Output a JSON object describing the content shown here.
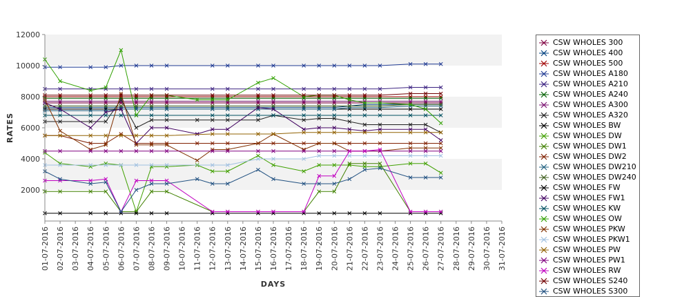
{
  "chart_data": {
    "type": "line",
    "title": "",
    "xlabel": "DAYS",
    "ylabel": "RATES",
    "ylim": [
      0,
      12000
    ],
    "yticks": [
      2000,
      4000,
      6000,
      8000,
      10000,
      12000
    ],
    "grid": "alternating horizontal bands",
    "legend_position": "right",
    "marker": "x",
    "categories": [
      "01-07-2016",
      "02-07-2016",
      "03-07-2016",
      "04-07-2016",
      "05-07-2016",
      "06-07-2016",
      "07-07-2016",
      "08-07-2016",
      "09-07-2016",
      "10-07-2016",
      "11-07-2016",
      "12-07-2016",
      "13-07-2016",
      "14-07-2016",
      "15-07-2016",
      "16-07-2016",
      "17-07-2016",
      "18-07-2016",
      "19-07-2016",
      "20-07-2016",
      "21-07-2016",
      "22-07-2016",
      "23-07-2016",
      "24-07-2016",
      "25-07-2016",
      "26-07-2016",
      "27-07-2016",
      "28-07-2016",
      "29-07-2016",
      "30-07-2016",
      "31-07-2016"
    ],
    "series": [
      {
        "name": "CSW WHOLES 300",
        "color": "#800040",
        "values": [
          7600,
          7600,
          null,
          7600,
          7600,
          7600,
          7600,
          7600,
          7600,
          null,
          null,
          7600,
          7600,
          null,
          7600,
          7600,
          null,
          7600,
          7600,
          7600,
          7600,
          7600,
          7600,
          null,
          7600,
          7600,
          7600,
          null,
          null,
          null,
          null
        ]
      },
      {
        "name": "CSW WHOLES 400",
        "color": "#004080",
        "values": [
          7300,
          7300,
          null,
          7300,
          7300,
          7300,
          7300,
          7300,
          7300,
          null,
          null,
          7300,
          7300,
          null,
          7300,
          7300,
          null,
          7300,
          7300,
          7300,
          7400,
          7500,
          7500,
          null,
          7500,
          7500,
          7500,
          null,
          null,
          null,
          null
        ]
      },
      {
        "name": "CSW WHOLES 500",
        "color": "#a00000",
        "values": [
          8000,
          8000,
          null,
          8000,
          8000,
          8000,
          8000,
          8000,
          8000,
          null,
          null,
          8000,
          8000,
          null,
          8000,
          8000,
          null,
          8000,
          8000,
          8000,
          8000,
          8000,
          8000,
          null,
          8000,
          8000,
          8000,
          null,
          null,
          null,
          null
        ]
      },
      {
        "name": "CSW WHOLES A180",
        "color": "#1f3a93",
        "values": [
          9900,
          9900,
          null,
          9900,
          9900,
          10000,
          10000,
          10000,
          10000,
          null,
          null,
          10000,
          10000,
          null,
          10000,
          10000,
          null,
          10000,
          10000,
          10000,
          10000,
          10000,
          10000,
          null,
          10100,
          10100,
          10100,
          null,
          null,
          null,
          null
        ]
      },
      {
        "name": "CSW WHOLES A210",
        "color": "#3a2080",
        "values": [
          8500,
          8500,
          null,
          8500,
          8500,
          8500,
          8500,
          8500,
          8500,
          null,
          null,
          8500,
          8500,
          null,
          8500,
          8500,
          null,
          8500,
          8500,
          8500,
          8500,
          8500,
          8500,
          null,
          8600,
          8600,
          8600,
          null,
          null,
          null,
          null
        ]
      },
      {
        "name": "CSW WHOLES A240",
        "color": "#006000",
        "values": [
          7900,
          7900,
          null,
          7900,
          7900,
          7900,
          7900,
          7900,
          7900,
          null,
          null,
          7900,
          7900,
          null,
          7900,
          7900,
          null,
          7900,
          7900,
          7900,
          7900,
          7900,
          7900,
          null,
          7900,
          7900,
          7900,
          null,
          null,
          null,
          null
        ]
      },
      {
        "name": "CSW WHOLES A300",
        "color": "#7a1070",
        "values": [
          7700,
          7700,
          null,
          7700,
          7700,
          7700,
          7700,
          7700,
          7700,
          null,
          null,
          7700,
          7700,
          null,
          7700,
          7700,
          null,
          7700,
          7700,
          7700,
          7700,
          7700,
          7700,
          null,
          7700,
          7700,
          7700,
          null,
          null,
          null,
          null
        ]
      },
      {
        "name": "CSW WHOLES A320",
        "color": "#202020",
        "values": [
          6400,
          6400,
          null,
          6400,
          6400,
          7800,
          6000,
          6500,
          6500,
          null,
          6500,
          6500,
          6500,
          null,
          6500,
          6800,
          null,
          6500,
          6600,
          6600,
          6400,
          6200,
          6200,
          null,
          6200,
          6200,
          5700,
          null,
          null,
          null,
          null
        ]
      },
      {
        "name": "CSW WHOLES BW",
        "color": "#000000",
        "values": [
          7200,
          7200,
          null,
          7200,
          7200,
          7200,
          7200,
          7200,
          7200,
          null,
          null,
          7200,
          7200,
          null,
          7200,
          7200,
          null,
          7200,
          7200,
          7200,
          7200,
          7200,
          7200,
          null,
          7200,
          7200,
          7200,
          null,
          null,
          null,
          null
        ]
      },
      {
        "name": "CSW WHOLES DW",
        "color": "#40a000",
        "values": [
          4400,
          3700,
          null,
          3500,
          3700,
          3600,
          600,
          3500,
          3500,
          null,
          3600,
          3200,
          3200,
          null,
          4200,
          3600,
          null,
          3200,
          3600,
          3600,
          3600,
          3500,
          3500,
          null,
          3700,
          3700,
          3100,
          null,
          null,
          null,
          null
        ]
      },
      {
        "name": "CSW WHOLES DW1",
        "color": "#408000",
        "values": [
          1900,
          1900,
          null,
          1900,
          1900,
          600,
          600,
          1900,
          1900,
          null,
          null,
          600,
          600,
          null,
          600,
          600,
          null,
          600,
          1900,
          1900,
          3700,
          3700,
          3700,
          null,
          600,
          600,
          600,
          null,
          null,
          null,
          null
        ]
      },
      {
        "name": "CSW WHOLES DW2",
        "color": "#802000",
        "values": [
          5500,
          5500,
          null,
          5000,
          5000,
          5600,
          5000,
          5000,
          5000,
          null,
          5000,
          5000,
          5000,
          null,
          5000,
          5000,
          null,
          5000,
          5000,
          5000,
          5000,
          5000,
          5000,
          null,
          5000,
          5000,
          5000,
          null,
          null,
          null,
          null
        ]
      },
      {
        "name": "CSW WHOLES DW210",
        "color": "#206080",
        "values": [
          7100,
          7100,
          null,
          7100,
          7100,
          7200,
          7200,
          7200,
          7200,
          null,
          null,
          7200,
          7200,
          null,
          7200,
          7200,
          null,
          7200,
          7200,
          7200,
          7300,
          7300,
          7300,
          null,
          7400,
          7400,
          7400,
          null,
          null,
          null,
          null
        ]
      },
      {
        "name": "CSW WHOLES DW240",
        "color": "#406020",
        "values": [
          7400,
          7400,
          null,
          7400,
          7400,
          7400,
          7400,
          7400,
          7400,
          null,
          null,
          7400,
          7400,
          null,
          7400,
          7400,
          null,
          7400,
          7400,
          7400,
          7400,
          7400,
          7400,
          null,
          7500,
          7500,
          7500,
          null,
          null,
          null,
          null
        ]
      },
      {
        "name": "CSW WHOLES FW",
        "color": "#000000",
        "values": [
          500,
          500,
          null,
          500,
          500,
          500,
          500,
          500,
          500,
          null,
          null,
          500,
          500,
          null,
          500,
          500,
          null,
          500,
          500,
          500,
          500,
          500,
          500,
          null,
          500,
          500,
          500,
          null,
          null,
          null,
          null
        ]
      },
      {
        "name": "CSW WHOLES FW1",
        "color": "#400060",
        "values": [
          7600,
          7200,
          null,
          6000,
          7000,
          7200,
          5000,
          6000,
          6000,
          null,
          5600,
          5900,
          5900,
          null,
          7300,
          7200,
          null,
          5900,
          6000,
          6000,
          5900,
          5800,
          5900,
          null,
          5900,
          5900,
          5200,
          null,
          null,
          null,
          null
        ]
      },
      {
        "name": "CSW WHOLES KW",
        "color": "#005060",
        "values": [
          6800,
          6800,
          null,
          6800,
          6800,
          6800,
          6800,
          6800,
          6800,
          null,
          null,
          6800,
          6800,
          null,
          6800,
          6800,
          null,
          6800,
          6800,
          6800,
          6800,
          6800,
          6800,
          null,
          6800,
          6800,
          6800,
          null,
          null,
          null,
          null
        ]
      },
      {
        "name": "CSW WHOLES OW",
        "color": "#30a000",
        "values": [
          10400,
          9000,
          null,
          8400,
          8600,
          11000,
          6800,
          8100,
          8100,
          null,
          7800,
          7800,
          7800,
          null,
          8900,
          9200,
          null,
          8000,
          8100,
          8100,
          7800,
          7600,
          7600,
          null,
          7500,
          7200,
          6300,
          null,
          null,
          null,
          null
        ]
      },
      {
        "name": "CSW WHOLES PKW",
        "color": "#803000",
        "values": [
          7800,
          5800,
          null,
          4600,
          4900,
          8200,
          4900,
          4900,
          4900,
          null,
          3900,
          4600,
          4600,
          null,
          5000,
          5600,
          null,
          4600,
          5000,
          5000,
          4500,
          4500,
          4500,
          null,
          4700,
          4700,
          4700,
          null,
          null,
          null,
          null
        ]
      },
      {
        "name": "CSW WHOLES PKW1",
        "color": "#a0c0e0",
        "values": [
          3600,
          3600,
          null,
          3600,
          3600,
          3600,
          3600,
          3600,
          3600,
          null,
          null,
          3600,
          3600,
          null,
          4000,
          4000,
          null,
          4000,
          4200,
          4200,
          4200,
          4200,
          4200,
          null,
          4200,
          4200,
          4200,
          null,
          null,
          null,
          null
        ]
      },
      {
        "name": "CSW WHOLES PW",
        "color": "#906000",
        "values": [
          5500,
          5500,
          null,
          5500,
          5500,
          5500,
          5500,
          5500,
          5500,
          null,
          null,
          5600,
          5600,
          null,
          5600,
          5600,
          null,
          5700,
          5700,
          5700,
          5700,
          5700,
          5700,
          null,
          5700,
          5700,
          5700,
          null,
          null,
          null,
          null
        ]
      },
      {
        "name": "CSW WHOLES PW1",
        "color": "#800080",
        "values": [
          4500,
          4500,
          null,
          4500,
          4500,
          4500,
          4500,
          4500,
          4500,
          null,
          null,
          4500,
          4500,
          null,
          4500,
          4500,
          null,
          4500,
          4500,
          4500,
          4500,
          4500,
          4500,
          null,
          4500,
          4500,
          4500,
          null,
          null,
          null,
          null
        ]
      },
      {
        "name": "CSW WHOLES RW",
        "color": "#c000c0",
        "values": [
          2600,
          2600,
          null,
          2600,
          2700,
          600,
          2600,
          2600,
          2600,
          null,
          null,
          600,
          600,
          null,
          600,
          600,
          null,
          600,
          2900,
          2900,
          4500,
          4500,
          4600,
          null,
          600,
          600,
          600,
          null,
          null,
          null,
          null
        ]
      },
      {
        "name": "CSW WHOLES S240",
        "color": "#700000",
        "values": [
          8100,
          8100,
          null,
          8100,
          8100,
          8100,
          8100,
          8100,
          8100,
          null,
          null,
          8100,
          8100,
          null,
          8100,
          8100,
          null,
          8100,
          8100,
          8100,
          8100,
          8100,
          8100,
          null,
          8200,
          8200,
          8200,
          null,
          null,
          null,
          null
        ]
      },
      {
        "name": "CSW WHOLES S300",
        "color": "#205080",
        "values": [
          3200,
          2700,
          null,
          2400,
          2500,
          600,
          2000,
          2400,
          2400,
          null,
          2700,
          2400,
          2400,
          null,
          3300,
          2700,
          null,
          2400,
          2400,
          2400,
          2700,
          3300,
          3400,
          null,
          2800,
          2800,
          2800,
          null,
          null,
          null,
          null
        ]
      }
    ]
  }
}
